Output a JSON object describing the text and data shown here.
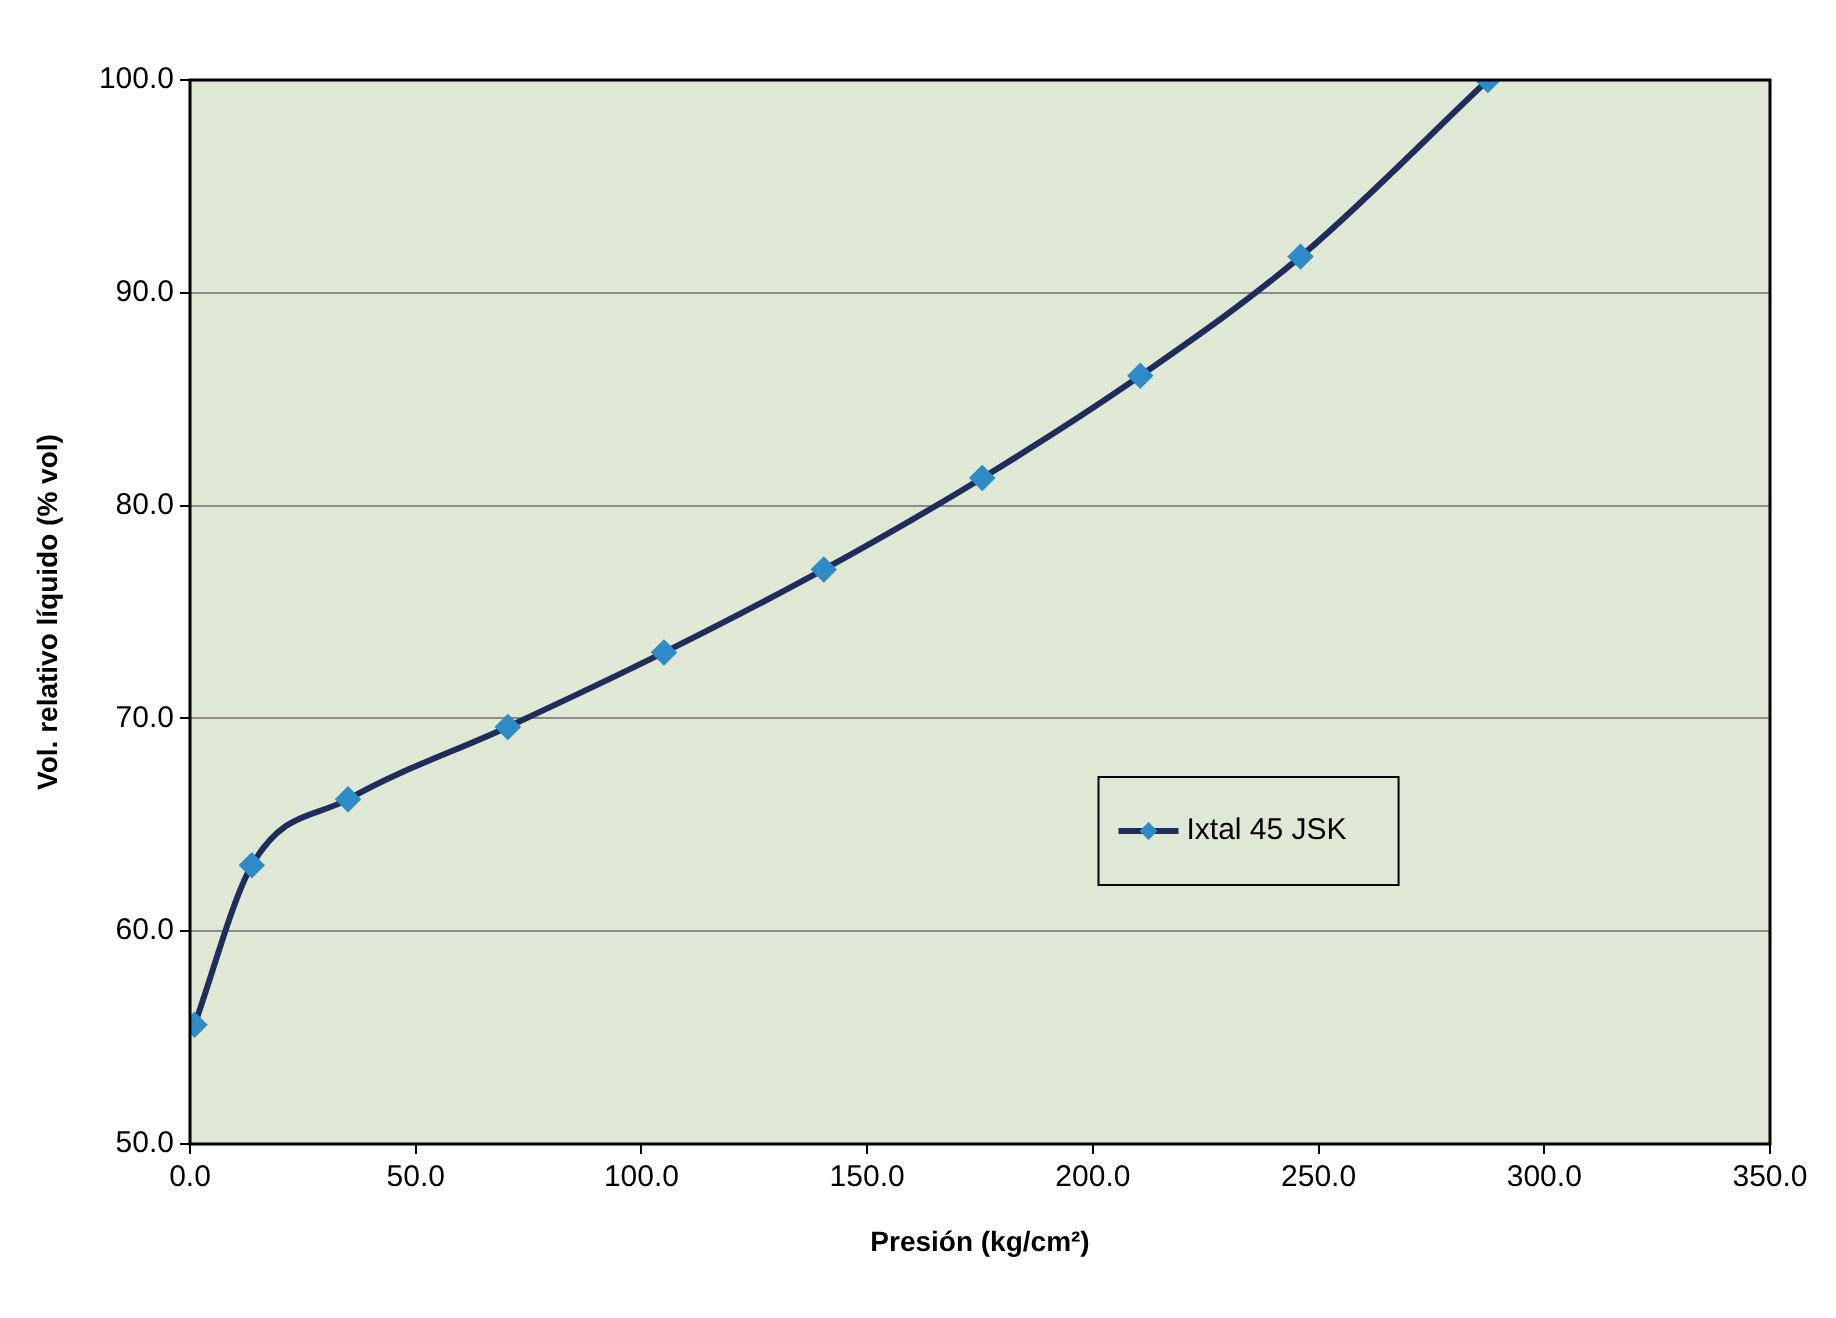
{
  "chart_data": {
    "type": "line",
    "xlabel": "Presión (kg/cm²)",
    "ylabel": "Vol. relativo líquido (% vol)",
    "x": [
      1,
      13.7,
      35,
      70.4,
      105,
      140.4,
      175.5,
      210.5,
      246,
      287.5
    ],
    "series": [
      {
        "name": "Ixtal 45 JSK",
        "color": "#1f2d5c",
        "values": [
          55.6,
          63.1,
          66.2,
          69.6,
          73.1,
          77.0,
          81.3,
          86.1,
          91.7,
          100.0
        ]
      }
    ],
    "xlim": [
      0,
      350
    ],
    "xticks": [
      {
        "value": 0,
        "label": "0.0"
      },
      {
        "value": 50,
        "label": "50.0"
      },
      {
        "value": 100,
        "label": "100.0"
      },
      {
        "value": 150,
        "label": "150.0"
      },
      {
        "value": 200,
        "label": "200.0"
      },
      {
        "value": 250,
        "label": "250.0"
      },
      {
        "value": 300,
        "label": "300.0"
      },
      {
        "value": 350,
        "label": "350.0"
      }
    ],
    "ylim": [
      50,
      100
    ],
    "yticks": [
      {
        "value": 50,
        "label": "50.0"
      },
      {
        "value": 60,
        "label": "60.0"
      },
      {
        "value": 70,
        "label": "70.0"
      },
      {
        "value": 80,
        "label": "80.0"
      },
      {
        "value": 90,
        "label": "90.0"
      },
      {
        "value": 100,
        "label": "100.0"
      }
    ],
    "grid": "y",
    "legend": "right",
    "marker": "diamond",
    "line_style": "solid"
  }
}
